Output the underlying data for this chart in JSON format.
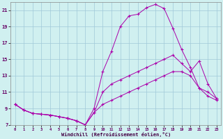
{
  "background_color": "#d0f0f0",
  "line_color": "#aa00aa",
  "grid_color": "#a0c8d8",
  "xlabel": "Windchill (Refroidissement éolien,°C)",
  "xlim_min": -0.5,
  "xlim_max": 23.5,
  "ylim_min": 7,
  "ylim_max": 22,
  "xticks": [
    0,
    1,
    2,
    3,
    4,
    5,
    6,
    7,
    8,
    9,
    10,
    11,
    12,
    13,
    14,
    15,
    16,
    17,
    18,
    19,
    20,
    21,
    22,
    23
  ],
  "yticks": [
    7,
    9,
    11,
    13,
    15,
    17,
    19,
    21
  ],
  "line1_x": [
    0,
    1,
    2,
    3,
    4,
    5,
    6,
    7,
    8,
    9,
    10,
    11,
    12,
    13,
    14,
    15,
    16,
    17,
    18,
    19,
    20,
    21,
    22,
    23
  ],
  "line1_y": [
    9.5,
    8.8,
    8.4,
    8.3,
    8.2,
    8.0,
    7.8,
    7.5,
    7.0,
    9.0,
    13.5,
    16.0,
    19.0,
    20.3,
    20.5,
    21.3,
    21.7,
    21.2,
    18.8,
    16.2,
    14.0,
    11.5,
    10.5,
    10.0
  ],
  "line2_x": [
    0,
    1,
    2,
    3,
    4,
    5,
    6,
    7,
    8,
    9,
    10,
    11,
    12,
    13,
    14,
    15,
    16,
    17,
    18,
    19,
    20,
    21,
    22,
    23
  ],
  "line2_y": [
    9.5,
    8.8,
    8.4,
    8.3,
    8.2,
    8.0,
    7.8,
    7.5,
    7.0,
    8.5,
    11.0,
    12.0,
    12.5,
    13.0,
    13.5,
    14.0,
    14.5,
    15.0,
    15.5,
    14.5,
    13.5,
    14.8,
    12.0,
    10.2
  ],
  "line3_x": [
    0,
    1,
    2,
    3,
    4,
    5,
    6,
    7,
    8,
    9,
    10,
    11,
    12,
    13,
    14,
    15,
    16,
    17,
    18,
    19,
    20,
    21,
    22,
    23
  ],
  "line3_y": [
    9.5,
    8.8,
    8.4,
    8.3,
    8.2,
    8.0,
    7.8,
    7.5,
    7.0,
    8.5,
    9.5,
    10.0,
    10.5,
    11.0,
    11.5,
    12.0,
    12.5,
    13.0,
    13.5,
    13.5,
    13.0,
    11.5,
    11.0,
    10.2
  ]
}
